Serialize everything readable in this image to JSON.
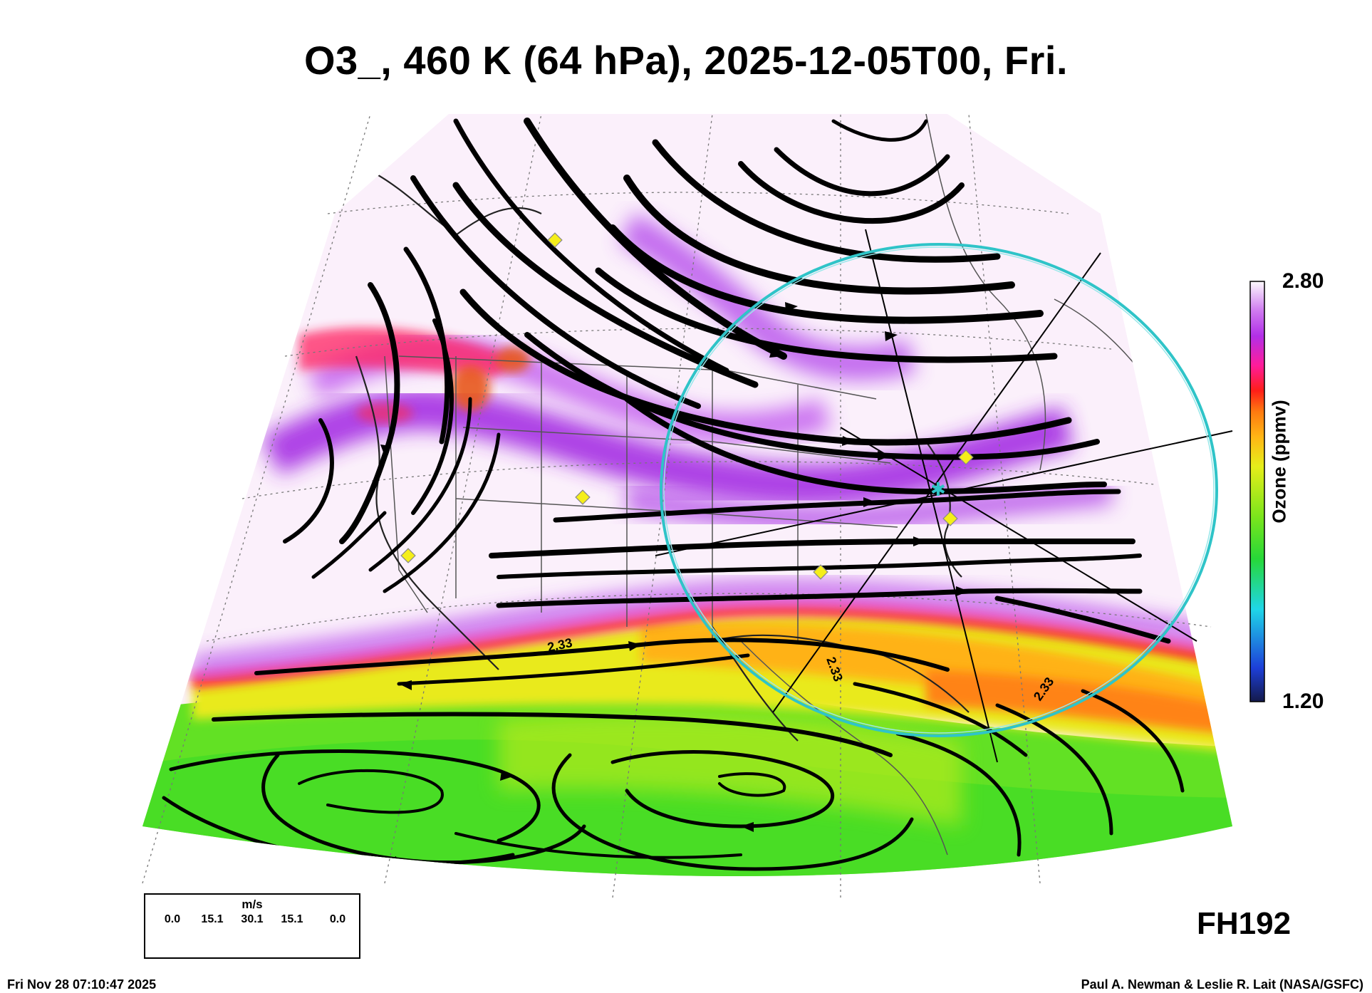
{
  "title": "O3_, 460 K (64 hPa), 2025-12-05T00, Fri.",
  "colorbar": {
    "max_label": "2.80",
    "min_label": "1.20",
    "axis_label": "Ozone (ppmv)",
    "colors": [
      "#141a4a",
      "#1d3fd8",
      "#1fd6e8",
      "#27d838",
      "#7be51c",
      "#e6ee1a",
      "#ffb515",
      "#ff7a10",
      "#ff1e18",
      "#ff1c9a",
      "#b22fe8",
      "#cf7af0",
      "#f3dcf5",
      "#fdfbfd"
    ]
  },
  "forecast_hour": "FH192",
  "vector_legend": {
    "unit": "m/s",
    "ticks": [
      "0.0",
      "15.1",
      "30.1",
      "15.1",
      "0.0"
    ]
  },
  "footer": {
    "timestamp": "Fri Nov 28 07:10:47 2025",
    "credit": "Paul A. Newman & Leslie R. Lait (NASA/GSFC)"
  },
  "contour_labels": [
    "2.33",
    "2.33",
    "2.33"
  ],
  "map_colors": {
    "high_ozone_band": "#a52fe3",
    "ring": "#2fc4c8",
    "markers": "#f5ee1a",
    "streamlines": "#000000"
  }
}
